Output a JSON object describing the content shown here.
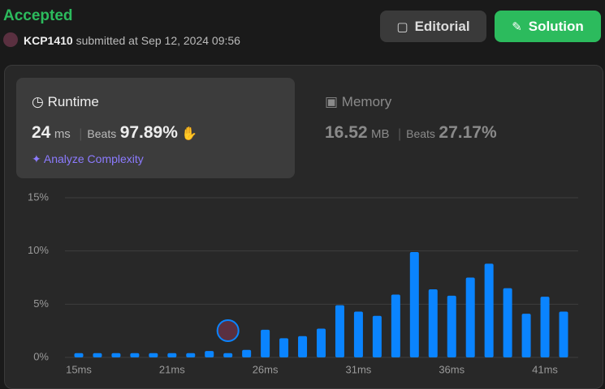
{
  "header": {
    "status": "Accepted",
    "user": "KCP1410",
    "submitted": "submitted at Sep 12, 2024 09:56",
    "buttons": [
      "Editorial",
      "Solution"
    ]
  },
  "runtime": {
    "title": "Runtime",
    "value": "24",
    "unit": "ms",
    "beats_label": "Beats",
    "beats": "97.89%",
    "analyze": "Analyze Complexity"
  },
  "memory": {
    "title": "Memory",
    "value": "16.52",
    "unit": "MB",
    "beats_label": "Beats",
    "beats": "27.17%"
  },
  "chart_data": {
    "type": "bar",
    "color": "#0a84ff",
    "categories": [
      "15ms",
      null,
      null,
      null,
      null,
      "21ms",
      null,
      null,
      null,
      null,
      "26ms",
      null,
      null,
      null,
      null,
      "31ms",
      null,
      null,
      null,
      null,
      "36ms",
      null,
      null,
      null,
      null,
      "41ms",
      null
    ],
    "values": [
      0.4,
      0.4,
      0.4,
      0.4,
      0.4,
      0.4,
      0.4,
      0.6,
      0.4,
      0.7,
      2.6,
      1.8,
      2.0,
      2.7,
      4.9,
      4.3,
      3.9,
      5.9,
      9.9,
      6.4,
      5.8,
      7.5,
      8.8,
      6.5,
      4.1,
      5.7,
      4.3
    ],
    "ylim": [
      0,
      15
    ],
    "yticks": [
      {
        "value": 0,
        "label": "0%"
      },
      {
        "value": 5,
        "label": "5%"
      },
      {
        "value": 10,
        "label": "10%"
      },
      {
        "value": 15,
        "label": "15%"
      }
    ],
    "grid": true
  }
}
